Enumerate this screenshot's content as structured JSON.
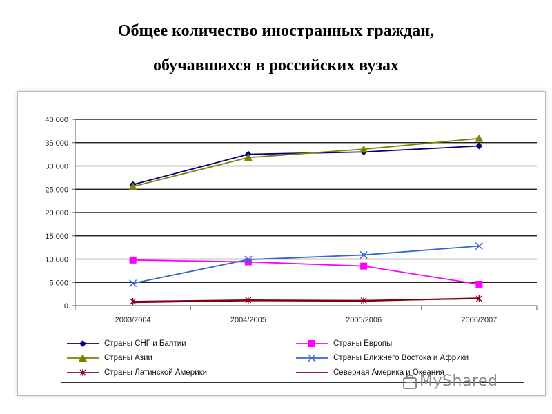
{
  "title": {
    "line1": "Общее количество иностранных граждан,",
    "line2": "обучавшихся в российских вузах"
  },
  "watermark": "MyShared",
  "chart_data": {
    "type": "line",
    "categories": [
      "2003/2004",
      "2004/2005",
      "2005/2006",
      "2006/2007"
    ],
    "y_tick_labels": [
      "0",
      "5 000",
      "10 000",
      "15 000",
      "20 000",
      "25 000",
      "30 000",
      "35 000",
      "40 000"
    ],
    "ylim": [
      0,
      40000
    ],
    "grid": true,
    "legend_position": "bottom",
    "series": [
      {
        "name": "Страны СНГ и Балтии",
        "values": [
          26000,
          32500,
          33000,
          34300
        ],
        "color": "#000080",
        "marker": "diamond"
      },
      {
        "name": "Страны Европы",
        "values": [
          9800,
          9400,
          8500,
          4600
        ],
        "color": "#ff00ff",
        "marker": "square"
      },
      {
        "name": "Страны Азии",
        "values": [
          25600,
          31800,
          33600,
          35900
        ],
        "color": "#808000",
        "marker": "triangle"
      },
      {
        "name": "Страны Ближнего Востока и Африки",
        "values": [
          4800,
          9900,
          10900,
          12800
        ],
        "color": "#3366cc",
        "marker": "x"
      },
      {
        "name": "Страны Латинской Америки",
        "values": [
          900,
          1200,
          1100,
          1500
        ],
        "color": "#800040",
        "marker": "star"
      },
      {
        "name": "Северная Америка и Океания",
        "values": [
          700,
          1100,
          1000,
          1600
        ],
        "color": "#800000",
        "marker": "none"
      }
    ]
  }
}
